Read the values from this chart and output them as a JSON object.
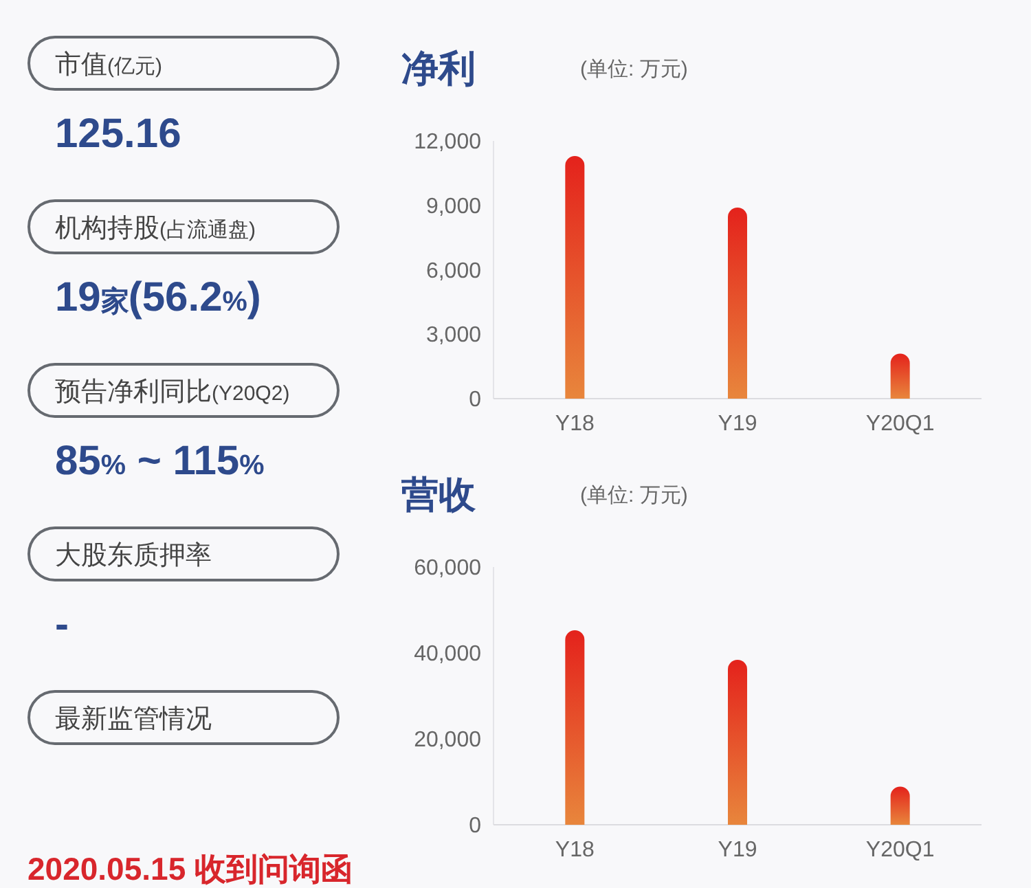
{
  "chart_data": [
    {
      "type": "other",
      "categories": [
        "市值(亿元)",
        "机构持股(占流通盘)",
        "预告净利同比(Y20Q2)",
        "大股东质押率",
        "最新监管情况"
      ],
      "value_labels": [
        "125.16",
        "19家(56.2%)",
        "85% ~ 115%",
        "-",
        "2020.05.15 收到问询函"
      ],
      "colors": [
        "#2e4a8c",
        "#2e4a8c",
        "#2e4a8c",
        "#2e4a8c",
        "#d8262c"
      ]
    },
    {
      "type": "bar",
      "title": "净利",
      "subtitle": "(单位: 万元)",
      "categories": [
        "Y18",
        "Y19",
        "Y20Q1"
      ],
      "values": [
        11300,
        8900,
        2100
      ],
      "color": "#e6522a",
      "ylim": [
        0,
        12000
      ],
      "yticks": [
        0,
        {
          "value": 3000,
          "label": "3,000"
        },
        {
          "value": 6000,
          "label": "6,000"
        },
        {
          "value": 9000,
          "label": "9,000"
        },
        {
          "value": 12000,
          "label": "12,000"
        }
      ]
    },
    {
      "type": "bar",
      "title": "营收",
      "subtitle": "(单位: 万元)",
      "categories": [
        "Y18",
        "Y19",
        "Y20Q1"
      ],
      "values": [
        45300,
        38400,
        8900
      ],
      "color": "#e6522a",
      "ylim": [
        0,
        60000
      ],
      "yticks": [
        0,
        {
          "value": 20000,
          "label": "20,000"
        },
        {
          "value": 40000,
          "label": "40,000"
        },
        {
          "value": 60000,
          "label": "60,000"
        }
      ]
    }
  ]
}
